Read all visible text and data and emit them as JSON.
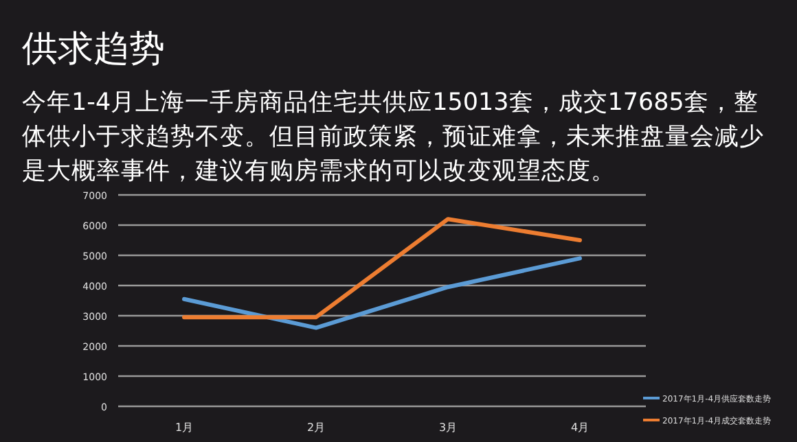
{
  "chart_data": {
    "type": "line",
    "title": "供求趋势",
    "subtitle": "今年1-4月上海一手房商品住宅共供应15013套，成交17685套，整体供小于求趋势不变。但目前政策紧，预证难拿，未来推盘量会减少是大概率事件，建议有购房需求的可以改变观望态度。",
    "categories": [
      "1月",
      "2月",
      "3月",
      "4月"
    ],
    "series": [
      {
        "name": "2017年1月-4月供应套数走势",
        "color": "#5b9bd5",
        "values": [
          3550,
          2600,
          3950,
          4900
        ]
      },
      {
        "name": "2017年1月-4月成交套数走势",
        "color": "#ed7d31",
        "values": [
          2950,
          2950,
          6200,
          5500
        ]
      }
    ],
    "ylim": [
      0,
      7000
    ],
    "yticks": [
      0,
      1000,
      2000,
      3000,
      4000,
      5000,
      6000,
      7000
    ],
    "grid": "y",
    "legend": "bottom right",
    "marker": "none",
    "line_style": "solid"
  }
}
